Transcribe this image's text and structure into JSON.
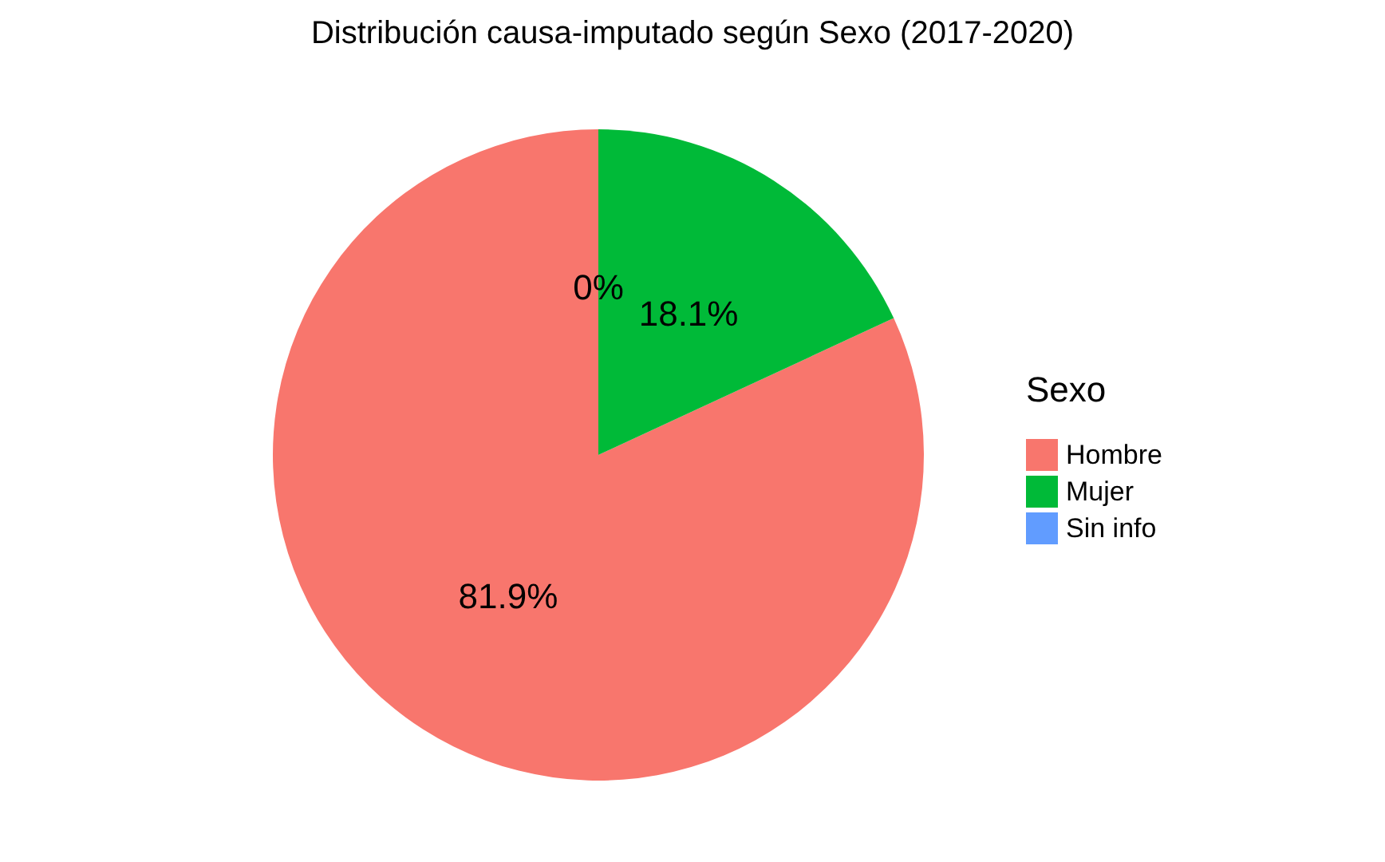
{
  "chart_data": {
    "type": "pie",
    "title": "Distribución causa-imputado según Sexo (2017-2020)",
    "legend_title": "Sexo",
    "categories": [
      "Hombre",
      "Mujer",
      "Sin info"
    ],
    "values": [
      81.9,
      18.1,
      0
    ],
    "colors": [
      "#f8766d",
      "#00ba38",
      "#619cff"
    ],
    "value_labels": [
      "81.9%",
      "18.1%",
      "0%"
    ],
    "legend": "right"
  }
}
